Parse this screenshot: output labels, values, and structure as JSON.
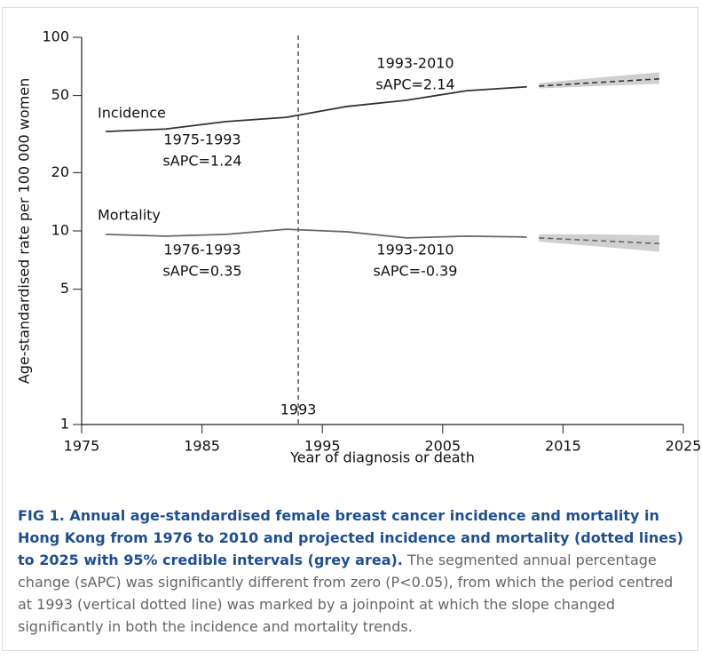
{
  "chart_data": {
    "type": "line",
    "ylabel": "Age-standardised rate per 100 000 women",
    "xlabel": "Year of diagnosis or death",
    "log_y": true,
    "xlim": [
      1975,
      2025
    ],
    "xticks": [
      1975,
      1985,
      1995,
      2005,
      2015,
      2025
    ],
    "ylim": [
      1,
      100
    ],
    "yticks": [
      1,
      5,
      10,
      20,
      50,
      100
    ],
    "vline": 1993,
    "series": [
      {
        "name": "Incidence",
        "color": "#333333",
        "x": [
          1977,
          1982,
          1987,
          1992,
          1997,
          2002,
          2007,
          2012
        ],
        "values": [
          32.6,
          33.6,
          36.7,
          38.6,
          43.9,
          47.3,
          53,
          55.5
        ],
        "projection": {
          "x": [
            2013,
            2018,
            2023
          ],
          "values": [
            56,
            58.5,
            61
          ],
          "lower": [
            54.5,
            56,
            57.5
          ],
          "upper": [
            58,
            62,
            66
          ]
        }
      },
      {
        "name": "Mortality",
        "color": "#666666",
        "x": [
          1977,
          1982,
          1987,
          1992,
          1997,
          2002,
          2007,
          2012
        ],
        "values": [
          9.6,
          9.4,
          9.6,
          10.2,
          9.9,
          9.2,
          9.4,
          9.3
        ],
        "projection": {
          "x": [
            2013,
            2018,
            2023
          ],
          "values": [
            9.2,
            8.9,
            8.6
          ],
          "lower": [
            8.8,
            8.3,
            7.8
          ],
          "upper": [
            9.6,
            9.6,
            9.5
          ]
        }
      }
    ],
    "band_color": "#d0d0d0",
    "annotations": [
      [
        "1993-2010",
        "sAPC=2.14"
      ],
      [
        "1975-1993",
        "sAPC=1.24"
      ],
      [
        "1976-1993",
        "sAPC=0.35"
      ],
      [
        "1993-2010",
        "sAPC=-0.39"
      ]
    ]
  },
  "caption": {
    "title": "FIG 1. Annual age-standardised female breast cancer incidence and mortality in Hong Kong from 1976 to 2010 and projected incidence and mortality (dotted lines) to 2025 with 95% credible intervals (grey area).",
    "text": "The segmented annual percentage change (sAPC) was significantly different from zero (P<0.05), from which the period centred at 1993 (vertical dotted line) was marked by a joinpoint at which the slope changed significantly in both the incidence and mortality trends."
  }
}
